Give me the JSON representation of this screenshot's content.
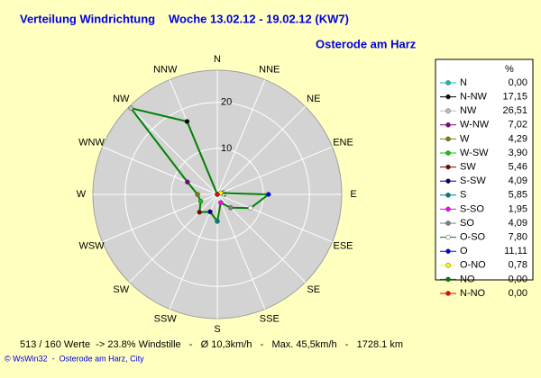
{
  "chart_data": {
    "type": "radar",
    "title": "Verteilung Windrichtung",
    "subtitle": "Woche 13.02.12 - 19.02.12 (KW7)",
    "location": "Osterode am Harz",
    "legend_title": "%",
    "line_color": "#008000",
    "rlim": [
      0,
      27
    ],
    "rticks": [
      0,
      10,
      20
    ],
    "compass": [
      "N",
      "NNW",
      "NW",
      "WNW",
      "W",
      "WSW",
      "SW",
      "SSW",
      "S",
      "SSE",
      "SE",
      "ESE",
      "E",
      "ENE",
      "NE",
      "NNE"
    ],
    "points": [
      {
        "name": "N",
        "value": 0,
        "value_label": "0,00",
        "color": "#00c0c0"
      },
      {
        "name": "N-NW",
        "value": 17.15,
        "value_label": "17,15",
        "color": "#000000"
      },
      {
        "name": "NW",
        "value": 26.51,
        "value_label": "26,51",
        "color": "#c0c0c0"
      },
      {
        "name": "W-NW",
        "value": 7.02,
        "value_label": "7,02",
        "color": "#800080"
      },
      {
        "name": "W",
        "value": 4.29,
        "value_label": "4,29",
        "color": "#808000"
      },
      {
        "name": "W-SW",
        "value": 3.9,
        "value_label": "3,90",
        "color": "#00d000"
      },
      {
        "name": "SW",
        "value": 5.46,
        "value_label": "5,46",
        "color": "#800000"
      },
      {
        "name": "S-SW",
        "value": 4.09,
        "value_label": "4,09",
        "color": "#000080"
      },
      {
        "name": "S",
        "value": 5.85,
        "value_label": "5,85",
        "color": "#008080"
      },
      {
        "name": "S-SO",
        "value": 1.95,
        "value_label": "1,95",
        "color": "#ff00ff"
      },
      {
        "name": "SO",
        "value": 4.09,
        "value_label": "4,09",
        "color": "#808080"
      },
      {
        "name": "O-SO",
        "value": 7.8,
        "value_label": "7,80",
        "color": "#ffffff"
      },
      {
        "name": "O",
        "value": 11.11,
        "value_label": "11,11",
        "color": "#0000ff"
      },
      {
        "name": "O-NO",
        "value": 0.78,
        "value_label": "0,78",
        "color": "#ffff00"
      },
      {
        "name": "NO",
        "value": 0,
        "value_label": "0,00",
        "color": "#008000"
      },
      {
        "name": "N-NO",
        "value": 0,
        "value_label": "0,00",
        "color": "#ff0000"
      }
    ],
    "footer": "513 / 160 Werte  -> 23.8% Windstille   -   Ø 10,3km/h   -   Max. 45,5km/h   -   1728.1 km",
    "credit": "© WsWin32  -  Osterode am Harz, City"
  }
}
